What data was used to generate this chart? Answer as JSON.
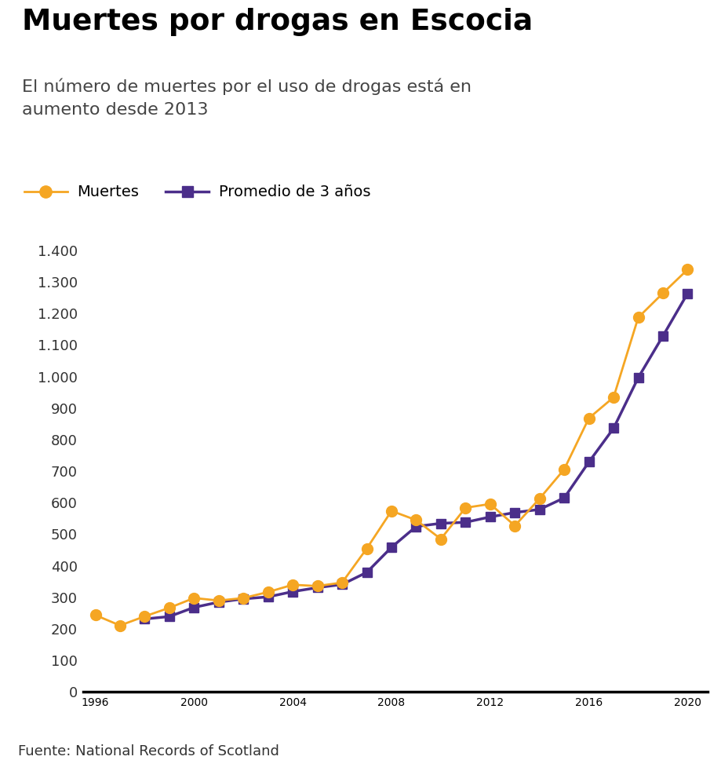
{
  "title": "Muertes por drogas en Escocia",
  "subtitle": "El número de muertes por el uso de drogas está en\naumento desde 2013",
  "source": "Fuente: National Records of Scotland",
  "legend_muertes": "Muertes",
  "legend_promedio": "Promedio de 3 años",
  "color_muertes": "#F5A623",
  "color_promedio": "#4B2E8A",
  "years": [
    1996,
    1997,
    1998,
    1999,
    2000,
    2001,
    2002,
    2003,
    2004,
    2005,
    2006,
    2007,
    2008,
    2009,
    2010,
    2011,
    2012,
    2013,
    2014,
    2015,
    2016,
    2017,
    2018,
    2019,
    2020
  ],
  "muertes": [
    244,
    211,
    240,
    267,
    298,
    290,
    298,
    317,
    340,
    336,
    347,
    455,
    574,
    545,
    485,
    584,
    596,
    527,
    613,
    706,
    868,
    934,
    1187,
    1264,
    1339
  ],
  "ylim": [
    0,
    1400
  ],
  "yticks": [
    0,
    100,
    200,
    300,
    400,
    500,
    600,
    700,
    800,
    900,
    1000,
    1100,
    1200,
    1300,
    1400
  ],
  "xlim": [
    1995.5,
    2020.8
  ],
  "xticks": [
    1996,
    2000,
    2004,
    2008,
    2012,
    2016,
    2020
  ],
  "bg_color": "#FFFFFF",
  "footer_bg": "#DCDCDC",
  "bbc_bg": "#1C1C8A",
  "title_fontsize": 27,
  "subtitle_fontsize": 16,
  "tick_fontsize": 13,
  "legend_fontsize": 14,
  "source_fontsize": 13
}
